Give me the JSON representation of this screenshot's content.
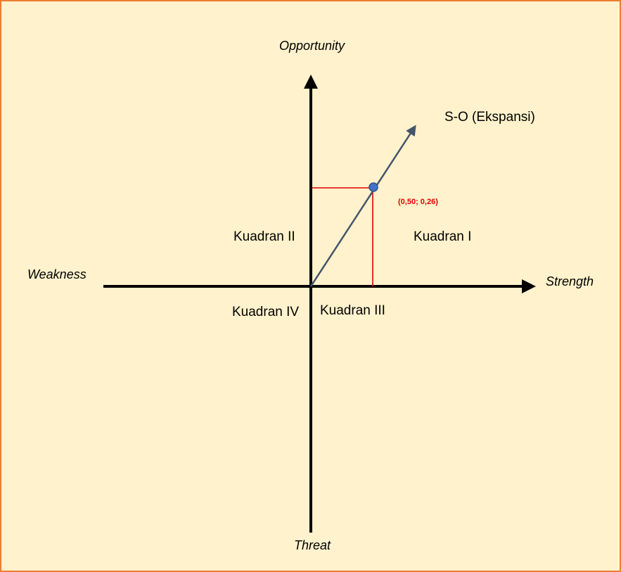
{
  "axes": {
    "top": "Opportunity",
    "bottom": "Threat",
    "left": "Weakness",
    "right": "Strength"
  },
  "quadrants": {
    "q1": "Kuadran I",
    "q2": "Kuadran II",
    "q3": "Kuadran III",
    "q4": "Kuadran IV"
  },
  "strategy": "S-O (Ekspansi)",
  "point": {
    "label": "(0,50; 0,26)",
    "strength": 0.5,
    "opportunity": 0.26
  },
  "colors": {
    "background": "#fff2cc",
    "border": "#ed7d31",
    "axis": "#000000",
    "vector": "#44546a",
    "guide": "#e00000",
    "point_fill": "#4472c4"
  }
}
